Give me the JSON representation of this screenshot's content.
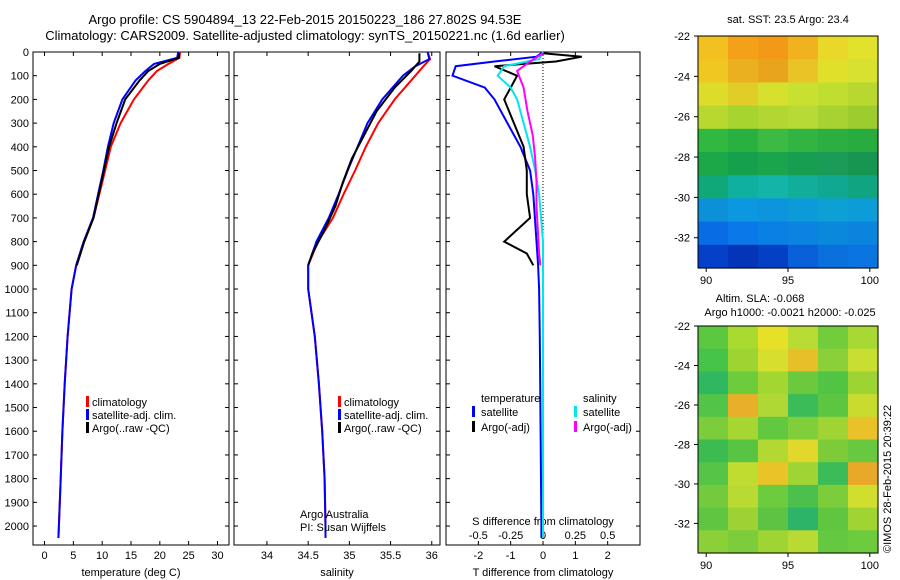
{
  "titles": {
    "line1": "Argo profile: CS 5904894_13 22-Feb-2015 20150223_186 27.802S 94.53E",
    "line2": "Climatology: CARS2009. Satellite-adjusted climatology: synTS_20150221.nc (1.6d earlier)"
  },
  "colors": {
    "climatology": "#ff0000",
    "satellite": "#0000ff",
    "argo": "#000000",
    "satellite_salinity": "#00e5ee",
    "argo_salinity": "#ff00ff"
  },
  "legend": {
    "climatology": "climatology",
    "satellite_adj": "satellite-adj. clim.",
    "argo_raw": "Argo(..raw -QC)",
    "temperature_head": "temperature",
    "salinity_head": "salinity",
    "satellite": "satellite",
    "argo_adj": "Argo(-adj)"
  },
  "credits": {
    "org": "Argo Australia",
    "pi": "PI: Susan Wijffels",
    "stamp": "©IMOS 28-Feb-2015 20:39:22"
  },
  "maps": {
    "sst_title": "sat. SST: 23.5  Argo: 23.4",
    "sla_title1": "Altim. SLA: -0.068",
    "sla_title2": "Argo h1000: -0.0021  h2000: -0.025",
    "y_ticks": [
      "-22",
      "-24",
      "-26",
      "-28",
      "-30",
      "-32"
    ],
    "x_ticks": [
      "90",
      "95",
      "100"
    ]
  },
  "chart_data": [
    {
      "type": "line",
      "xlabel": "temperature (deg C)",
      "xlim": [
        -2,
        32
      ],
      "x_ticks": [
        "0",
        "5",
        "10",
        "15",
        "20",
        "25",
        "30"
      ],
      "ylim": [
        0,
        2080
      ],
      "y_ticks": [
        "0",
        "100",
        "200",
        "300",
        "400",
        "500",
        "600",
        "700",
        "800",
        "900",
        "1000",
        "1100",
        "1200",
        "1300",
        "1400",
        "1500",
        "1600",
        "1700",
        "1800",
        "1900",
        "2000"
      ],
      "series": [
        {
          "name": "climatology",
          "depth": [
            0,
            25,
            50,
            80,
            120,
            200,
            300,
            400,
            500,
            600,
            700,
            800,
            900,
            1000,
            1200,
            1400,
            1600,
            1800,
            2000,
            2050
          ],
          "values": [
            23.5,
            23.4,
            21.5,
            19.5,
            18,
            15.5,
            13.2,
            11.5,
            10.5,
            9.5,
            8.5,
            6.8,
            5.5,
            4.7,
            4,
            3.5,
            3.1,
            2.8,
            2.5,
            2.4
          ]
        },
        {
          "name": "satellite-adj. clim.",
          "depth": [
            0,
            25,
            50,
            80,
            120,
            200,
            300,
            400,
            500,
            600,
            700,
            800,
            900,
            1000,
            1200,
            1400,
            1600,
            1800,
            2000,
            2050
          ],
          "values": [
            23.2,
            23,
            19,
            17.5,
            15.8,
            13.5,
            12,
            11,
            10.2,
            9.3,
            8.4,
            6.8,
            5.5,
            4.7,
            4,
            3.5,
            3.1,
            2.8,
            2.5,
            2.4
          ]
        },
        {
          "name": "Argo(..raw -QC)",
          "depth": [
            5,
            25,
            50,
            80,
            120,
            200,
            300,
            400,
            500,
            600,
            700,
            800,
            900
          ],
          "values": [
            23.4,
            23.3,
            20,
            18,
            16.5,
            14,
            12.5,
            11.2,
            10.3,
            9.4,
            8.5,
            6.9,
            5.6
          ]
        }
      ]
    },
    {
      "type": "line",
      "xlabel": "salinity",
      "xlim": [
        33.6,
        36.1
      ],
      "x_ticks": [
        "34",
        "34.5",
        "35",
        "35.5",
        "36"
      ],
      "ylim": [
        0,
        2080
      ],
      "series": [
        {
          "name": "climatology",
          "depth": [
            0,
            30,
            60,
            100,
            200,
            300,
            400,
            500,
            600,
            700,
            800,
            900,
            1000,
            1200,
            1400,
            1600,
            1800,
            2000,
            2050
          ],
          "values": [
            35.95,
            35.98,
            35.9,
            35.8,
            35.55,
            35.35,
            35.2,
            35.07,
            34.93,
            34.8,
            34.62,
            34.5,
            34.5,
            34.58,
            34.63,
            34.67,
            34.7,
            34.71,
            34.71
          ]
        },
        {
          "name": "satellite-adj. clim.",
          "depth": [
            0,
            30,
            60,
            100,
            200,
            300,
            400,
            500,
            600,
            700,
            800,
            900,
            1000,
            1200,
            1400,
            1600,
            1800,
            2000,
            2050
          ],
          "values": [
            35.95,
            35.97,
            35.8,
            35.65,
            35.4,
            35.22,
            35.1,
            34.98,
            34.87,
            34.75,
            34.6,
            34.5,
            34.5,
            34.58,
            34.63,
            34.67,
            34.7,
            34.71,
            34.71
          ]
        },
        {
          "name": "Argo(..raw -QC)",
          "depth": [
            5,
            40,
            80,
            150,
            250,
            350,
            450,
            550,
            650,
            750,
            850,
            900
          ],
          "values": [
            35.85,
            35.85,
            35.75,
            35.55,
            35.33,
            35.18,
            35.03,
            34.92,
            34.83,
            34.7,
            34.55,
            34.5
          ]
        }
      ]
    },
    {
      "type": "line",
      "xlabel": "T difference from climatology",
      "xlabel2": "S difference from climatology",
      "xlim": [
        -3,
        3
      ],
      "x_ticks": [
        "-2",
        "-1",
        "0",
        "1",
        "2"
      ],
      "x2_ticks": [
        "-0.5",
        "-0.25",
        "0",
        "0.25",
        "0.5"
      ],
      "ylim": [
        0,
        2080
      ],
      "series": [
        {
          "name": "temperature satellite",
          "depth": [
            0,
            20,
            40,
            60,
            100,
            150,
            200,
            300,
            400,
            500,
            600,
            700,
            800,
            900,
            1000,
            1200,
            1500,
            2000,
            2050
          ],
          "values": [
            0,
            -0.2,
            -1.5,
            -2.7,
            -2.8,
            -1.8,
            -1.5,
            -1.1,
            -0.7,
            -0.4,
            -0.3,
            -0.25,
            -0.2,
            -0.15,
            -0.12,
            -0.1,
            -0.08,
            -0.05,
            -0.05
          ]
        },
        {
          "name": "temperature Argo(-adj)",
          "depth": [
            5,
            20,
            40,
            60,
            100,
            150,
            200,
            300,
            400,
            500,
            600,
            700,
            800,
            850,
            900
          ],
          "values": [
            0,
            1.2,
            0.4,
            -1.5,
            -0.8,
            -1,
            -1.2,
            -0.9,
            -0.6,
            -0.5,
            -0.5,
            -0.4,
            -1.2,
            -0.5,
            -0.3
          ]
        },
        {
          "name": "salinity satellite",
          "depth": [
            0,
            30,
            60,
            100,
            150,
            200,
            300,
            400,
            500,
            600,
            800,
            1000,
            1500,
            2000,
            2050
          ],
          "values": [
            0,
            -0.03,
            -0.3,
            -0.35,
            -0.25,
            -0.2,
            -0.15,
            -0.1,
            -0.06,
            -0.03,
            0,
            0,
            0,
            0,
            0
          ]
        },
        {
          "name": "salinity Argo(-adj)",
          "depth": [
            5,
            40,
            80,
            150,
            250,
            350,
            450,
            550,
            650,
            750,
            850,
            900
          ],
          "values": [
            0,
            -0.1,
            -0.2,
            -0.15,
            -0.12,
            -0.08,
            -0.06,
            -0.05,
            -0.05,
            -0.04,
            -0.03,
            -0.02
          ]
        }
      ]
    },
    {
      "type": "heatmap",
      "title": "sat. SST: 23.5  Argo: 23.4",
      "xlim": [
        89.5,
        100.5
      ],
      "ylim": [
        -33.5,
        -22
      ],
      "rows": [
        [
          "#f2c020",
          "#f4a018",
          "#f29a18",
          "#f0b21e",
          "#e9d82a",
          "#e2e22c"
        ],
        [
          "#f0c620",
          "#eab020",
          "#e8a41c",
          "#eac426",
          "#e0e02a",
          "#d8e030"
        ],
        [
          "#dedc2a",
          "#e2cc28",
          "#d8e02e",
          "#c8e030",
          "#c0de30",
          "#b8d830"
        ],
        [
          "#b8d830",
          "#a8d430",
          "#b2d632",
          "#b8da34",
          "#a8d232",
          "#9ccc2e"
        ],
        [
          "#30b840",
          "#28b040",
          "#3cba44",
          "#32b442",
          "#2cae40",
          "#28ac40"
        ],
        [
          "#1ca848",
          "#14a04c",
          "#1aa44c",
          "#189e50",
          "#1a9c58",
          "#169650"
        ],
        [
          "#10a878",
          "#10b0a0",
          "#14b4a8",
          "#12ae9c",
          "#10a890",
          "#10a480"
        ],
        [
          "#0c90d8",
          "#0c98e0",
          "#0c94dc",
          "#0c9ad8",
          "#0ca0d4",
          "#0c9cd8"
        ],
        [
          "#086ce4",
          "#0a78e8",
          "#0a80e4",
          "#0a84e0",
          "#0a88dc",
          "#0a84dc"
        ],
        [
          "#0440c8",
          "#0434b8",
          "#0440c4",
          "#0a60d8",
          "#0a70dc",
          "#0a74e0"
        ]
      ]
    },
    {
      "type": "heatmap",
      "title": "Altim. SLA: -0.068",
      "xlim": [
        89.5,
        100.5
      ],
      "ylim": [
        -33.5,
        -22
      ],
      "rows": [
        [
          "#5cc840",
          "#a8da30",
          "#e6e028",
          "#b8dc34",
          "#72cc3c",
          "#a8d834"
        ],
        [
          "#46c448",
          "#9ed432",
          "#d8de2e",
          "#e6c028",
          "#8ad038",
          "#c8de30"
        ],
        [
          "#30b860",
          "#6ccc3c",
          "#a4d632",
          "#6cc83c",
          "#52c444",
          "#9cd434"
        ],
        [
          "#52c448",
          "#e8b028",
          "#b0d834",
          "#3cbc58",
          "#5cc640",
          "#c8dc30"
        ],
        [
          "#7ccc3c",
          "#a6d632",
          "#62c840",
          "#80ce3a",
          "#a0d434",
          "#e8c228"
        ],
        [
          "#3cbc50",
          "#58c444",
          "#b4d832",
          "#e2d82c",
          "#7ccc3a",
          "#68c840"
        ],
        [
          "#56c446",
          "#c0dc30",
          "#e8c428",
          "#a0d434",
          "#3cbc58",
          "#e8a828"
        ],
        [
          "#72ca3c",
          "#b8da32",
          "#6ccc3e",
          "#4cc04c",
          "#7ccc3c",
          "#d0de2e"
        ],
        [
          "#5ec640",
          "#9cd234",
          "#5cc442",
          "#2cb468",
          "#60c640",
          "#a0d432"
        ],
        [
          "#8cd038",
          "#7ccc3c",
          "#9ed434",
          "#b8da32",
          "#64c840",
          "#6ccc3e"
        ]
      ]
    }
  ]
}
